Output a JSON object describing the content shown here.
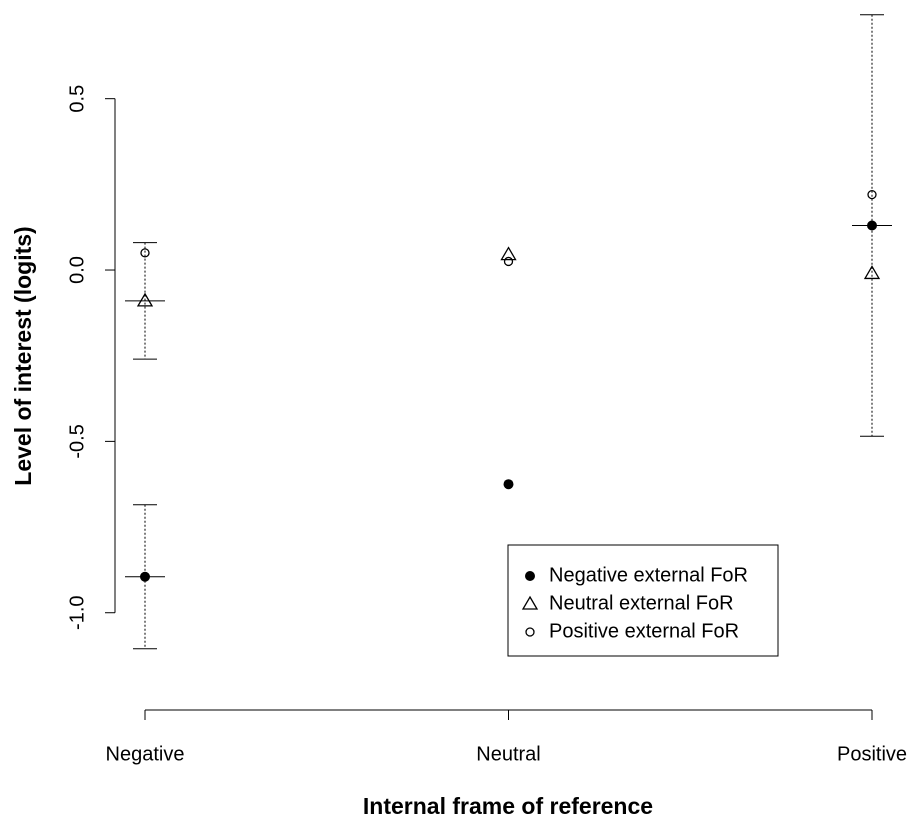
{
  "chart_data": {
    "type": "scatter",
    "x_label": "Internal frame of reference",
    "y_label": "Level of interest (logits)",
    "categories": [
      "Negative",
      "Neutral",
      "Positive"
    ],
    "ylim": [
      -1.1,
      0.75
    ],
    "yticks": [
      {
        "value": -1,
        "label": "-1.0"
      },
      -0.5,
      {
        "value": 0,
        "label": "0.0"
      },
      0.5
    ],
    "legend": "bottom",
    "series": [
      {
        "name": "Negative external FoR",
        "color": "#000000",
        "marker": "filled-circle",
        "values": [
          -0.895,
          -0.625,
          0.13
        ],
        "errors": [
          0.21,
          null,
          0.615
        ]
      },
      {
        "name": "Neutral external FoR",
        "color": "#000000",
        "marker": "triangle",
        "values": [
          -0.09,
          0.045,
          -0.01
        ],
        "errors": [
          0.17,
          null,
          null
        ]
      },
      {
        "name": "Positive external FoR",
        "color": "#000000",
        "marker": "circle",
        "values": [
          0.05,
          0.025,
          0.22
        ]
      }
    ]
  }
}
